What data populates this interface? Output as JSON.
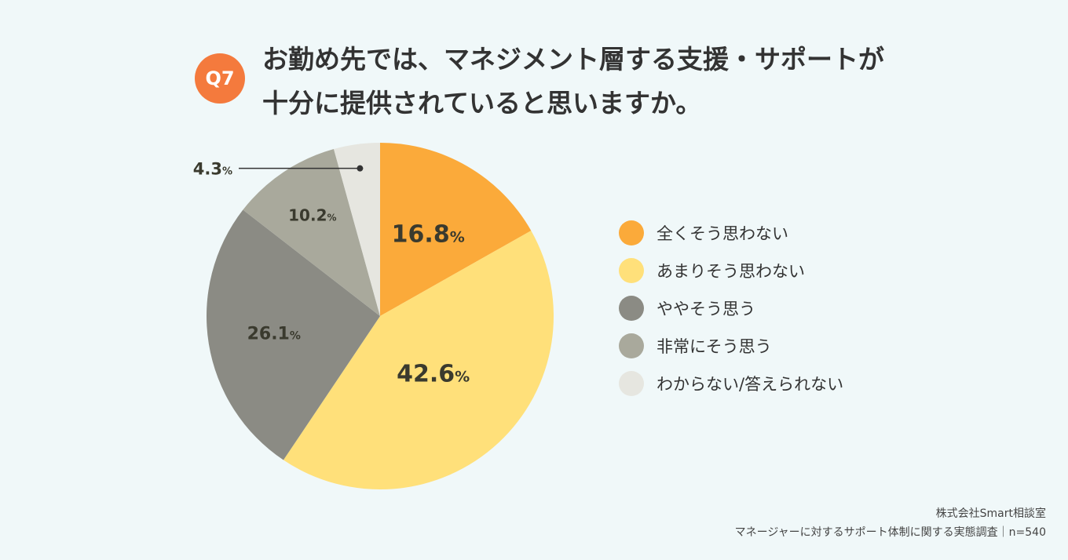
{
  "header": {
    "badge": "Q7",
    "title_line1": "お勤め先では、マネジメント層する支援・サポートが",
    "title_line2": "十分に提供されていると思いますか。"
  },
  "chart_data": {
    "type": "pie",
    "categories": [
      "全くそう思わない",
      "あまりそう思わない",
      "ややそう思う",
      "非常にそう思う",
      "わからない/答えられない"
    ],
    "values": [
      16.8,
      42.6,
      26.1,
      10.2,
      4.3
    ],
    "value_labels": [
      "16.8",
      "42.6",
      "26.1",
      "10.2",
      "4.3"
    ],
    "unit": "%",
    "colors": [
      "#fbaa3a",
      "#ffe07a",
      "#8b8b84",
      "#a9a99c",
      "#e6e6e0"
    ],
    "start": "12 o'clock, clockwise",
    "legend_position": "right"
  },
  "source": {
    "line1": "株式会社Smart相談室",
    "line2": "マネージャーに対するサポート体制に関する実態調査｜n=540"
  }
}
